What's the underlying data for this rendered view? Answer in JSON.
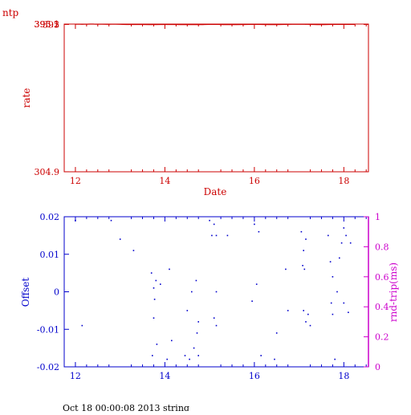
{
  "page_label": "ntp",
  "footer": "Oct 18 00:00:08 2013 string",
  "colors": {
    "top_axis": "#cc0000",
    "bottom_axis": "#0000cc",
    "right_axis": "#cc00cc",
    "points": "#0000cc"
  },
  "chart_data": [
    {
      "type": "line",
      "xlabel": "Date",
      "ylabel": "rate",
      "xlim": [
        11.75,
        18.55
      ],
      "ylim": [
        304.885,
        395.21
      ],
      "xticks": [
        12,
        14,
        16,
        18
      ],
      "xtick_labels": [
        "12",
        "14",
        "16",
        "18"
      ],
      "yticks": [
        304.9,
        395.0,
        395.1,
        395.2
      ],
      "ytick_labels": [
        "304.9",
        "395",
        "395.1",
        "395.2"
      ],
      "grid": false,
      "series": [
        {
          "x": [
            12.0,
            12.1,
            12.15,
            12.2,
            12.27,
            12.33,
            12.4,
            12.45,
            12.5,
            12.6,
            12.7,
            12.75,
            12.8,
            12.9,
            13.0,
            13.05,
            13.15,
            13.25,
            13.35,
            13.5,
            13.65,
            13.75,
            13.9,
            14.0,
            14.1,
            14.2,
            14.35,
            14.5,
            14.6,
            14.75,
            14.85,
            14.9,
            15.0,
            15.1,
            15.2,
            15.3,
            15.45,
            15.6,
            15.8,
            15.9,
            16.0,
            16.1,
            16.2,
            16.35,
            16.5,
            16.6,
            16.7,
            16.85,
            17.0,
            17.12,
            17.25,
            17.4,
            17.55,
            17.65,
            17.75,
            17.85,
            18.0,
            18.1,
            18.2,
            18.25
          ],
          "y": [
            395.09,
            395.09,
            395.08,
            395.12,
            395.17,
            395.2,
            395.2,
            395.1,
            395.1,
            395.09,
            395.05,
            395.04,
            395.1,
            395.1,
            395.08,
            395.02,
            394.985,
            394.985,
            394.975,
            394.975,
            394.93,
            394.93,
            394.948,
            394.948,
            394.948,
            394.945,
            394.91,
            394.895,
            394.885,
            394.9,
            394.94,
            394.96,
            394.99,
            395.0,
            395.0,
            394.92,
            394.9,
            394.91,
            394.97,
            395.01,
            395.03,
            395.0,
            394.95,
            394.93,
            394.93,
            394.97,
            395.02,
            395.04,
            395.06,
            395.04,
            394.99,
            394.94,
            394.935,
            394.96,
            394.99,
            395.0,
            395.0,
            395.01,
            395.01,
            395.0
          ]
        }
      ]
    },
    {
      "type": "scatter",
      "ylabel": "Offset",
      "y2label": "rnd-trip(ms)",
      "xlim": [
        11.75,
        18.55
      ],
      "ylim": [
        -0.02,
        0.02
      ],
      "y2lim": [
        0,
        1
      ],
      "xticks": [
        12,
        14,
        16,
        18
      ],
      "xtick_labels": [
        "12",
        "14",
        "16",
        "18"
      ],
      "yticks": [
        -0.02,
        -0.01,
        0,
        0.01,
        0.02
      ],
      "ytick_labels": [
        "-0.02",
        "-0.01",
        "0",
        "0.01",
        "0.02"
      ],
      "y2ticks": [
        0,
        0.2,
        0.4,
        0.6,
        0.8,
        1
      ],
      "y2tick_labels": [
        "0",
        "0.2",
        "0.4",
        "0.6",
        "0.8",
        "1"
      ],
      "grid": false,
      "series": [
        {
          "x": [
            12.0,
            12.15,
            12.8,
            13.0,
            13.3,
            13.7,
            13.72,
            13.75,
            13.75,
            13.77,
            13.8,
            13.82,
            13.9,
            14.05,
            14.1,
            14.15,
            14.45,
            14.5,
            14.55,
            14.6,
            14.65,
            14.7,
            14.72,
            14.75,
            14.75,
            15.0,
            15.05,
            15.1,
            15.1,
            15.15,
            15.15,
            15.15,
            15.4,
            15.95,
            16.0,
            16.05,
            16.1,
            16.15,
            16.45,
            16.5,
            16.7,
            16.75,
            17.05,
            17.08,
            17.1,
            17.1,
            17.12,
            17.15,
            17.15,
            17.2,
            17.25,
            17.65,
            17.7,
            17.72,
            17.75,
            17.75,
            17.8,
            17.85,
            17.9,
            17.95,
            18.0,
            18.0,
            18.05,
            18.1,
            18.15
          ],
          "y": [
            0.019,
            -0.009,
            0.019,
            0.014,
            0.011,
            0.005,
            -0.017,
            -0.007,
            0.001,
            -0.002,
            0.003,
            -0.014,
            0.002,
            -0.018,
            0.006,
            -0.013,
            -0.017,
            -0.005,
            -0.018,
            0.0,
            -0.015,
            0.003,
            -0.011,
            -0.017,
            -0.008,
            0.019,
            0.015,
            0.018,
            -0.007,
            0.015,
            -0.009,
            0.0,
            0.015,
            -0.0025,
            0.018,
            0.002,
            0.016,
            -0.017,
            -0.018,
            -0.011,
            0.006,
            -0.005,
            0.016,
            0.007,
            0.011,
            -0.005,
            0.006,
            -0.008,
            0.014,
            -0.006,
            -0.009,
            0.015,
            0.008,
            -0.003,
            -0.006,
            0.004,
            -0.018,
            0.0,
            0.009,
            0.013,
            0.017,
            -0.003,
            0.015,
            -0.0055,
            0.013
          ]
        }
      ]
    }
  ]
}
